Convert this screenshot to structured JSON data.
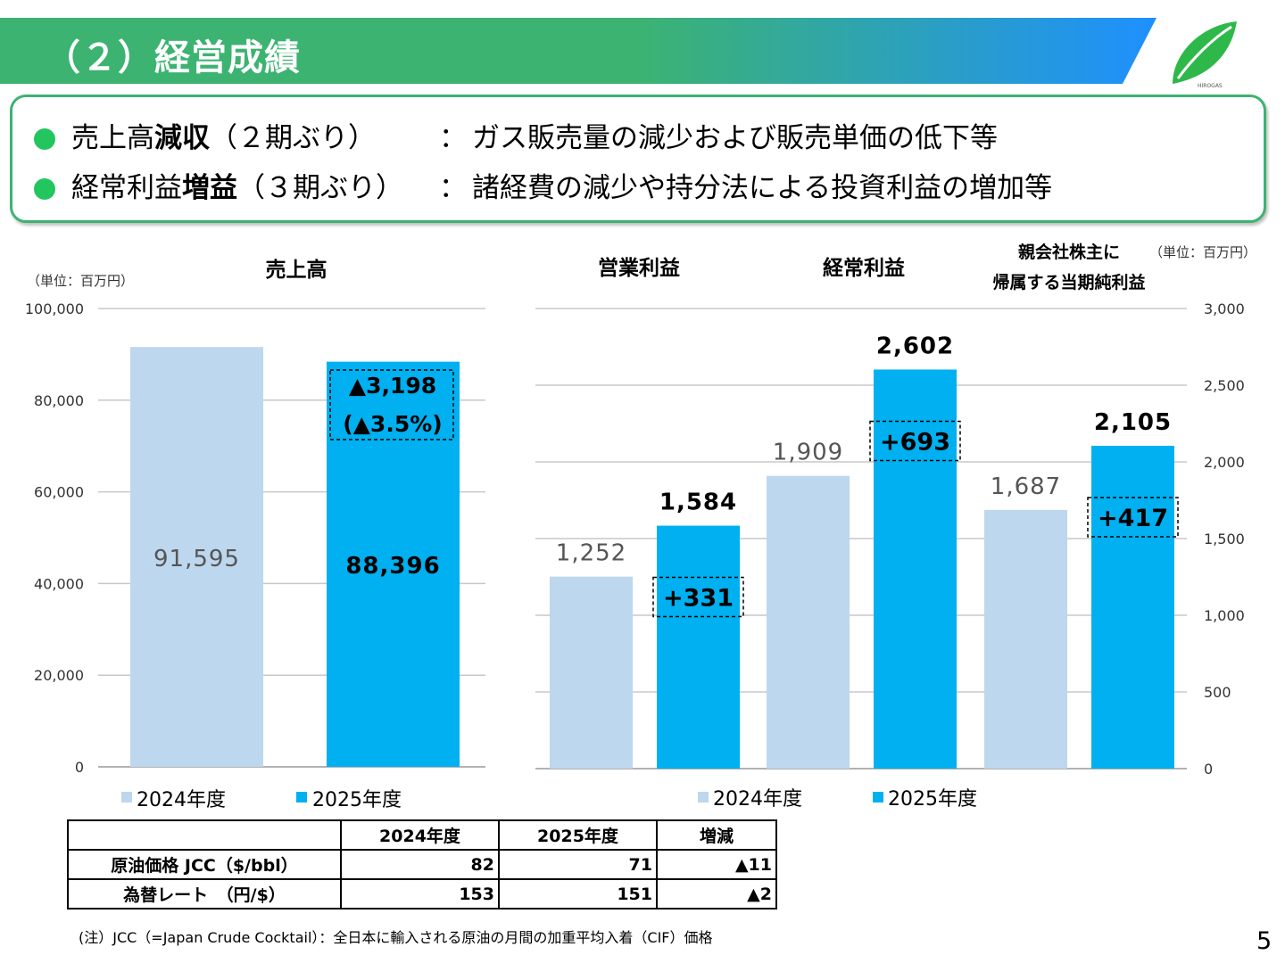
{
  "header": {
    "title": "（２）経営成績",
    "logo_text": "HIROGAS"
  },
  "summary": [
    {
      "prefix": "売上高",
      "bold": "減収",
      "paren": "（２期ぶり）",
      "colon": "：",
      "desc": "ガス販売量の減少および販売単価の低下等"
    },
    {
      "prefix": "経常利益",
      "bold": "増益",
      "paren": "（３期ぶり）",
      "colon": "：",
      "desc": "諸経費の減少や持分法による投資利益の増加等"
    }
  ],
  "colors": {
    "y2024": "#bdd7ee",
    "y2025": "#00b0f0",
    "header_green": "#3cb371",
    "header_blue": "#1e90ff"
  },
  "chart_data": [
    {
      "type": "bar",
      "title": "売上高",
      "unit_label": "（単位：百万円）",
      "categories": [
        "売上高"
      ],
      "series": [
        {
          "name": "2024年度",
          "values": [
            91595
          ],
          "labels": [
            "91,595"
          ]
        },
        {
          "name": "2025年度",
          "values": [
            88396
          ],
          "labels": [
            "88,396"
          ]
        }
      ],
      "annotation": {
        "line1": "▲3,198",
        "line2": "(▲3.5%)"
      },
      "ylim": [
        0,
        100000
      ],
      "yticks": [
        0,
        20000,
        40000,
        60000,
        80000,
        100000
      ],
      "ytick_labels": [
        "0",
        "20,000",
        "40,000",
        "60,000",
        "80,000",
        "100,000"
      ],
      "legend": [
        "2024年度",
        "2025年度"
      ]
    },
    {
      "type": "bar",
      "categories": [
        "営業利益",
        "経常利益",
        "親会社株主に帰属する当期純利益"
      ],
      "category_labels": [
        [
          "営業利益"
        ],
        [
          "経常利益"
        ],
        [
          "親会社株主に",
          "帰属する当期純利益"
        ]
      ],
      "unit_label": "（単位：百万円）",
      "series": [
        {
          "name": "2024年度",
          "values": [
            1252,
            1909,
            1687
          ],
          "labels": [
            "1,252",
            "1,909",
            "1,687"
          ]
        },
        {
          "name": "2025年度",
          "values": [
            1584,
            2602,
            2105
          ],
          "labels": [
            "1,584",
            "2,602",
            "2,105"
          ]
        }
      ],
      "diffs": [
        "+331",
        "+693",
        "+417"
      ],
      "ylim": [
        0,
        3000
      ],
      "yticks": [
        0,
        500,
        1000,
        1500,
        2000,
        2500,
        3000
      ],
      "ytick_labels": [
        "0",
        "500",
        "1,000",
        "1,500",
        "2,000",
        "2,500",
        "3,000"
      ],
      "legend": [
        "2024年度",
        "2025年度"
      ]
    }
  ],
  "table": {
    "headers": [
      "",
      "2024年度",
      "2025年度",
      "増減"
    ],
    "rows": [
      [
        "原油価格 JCC（$/bbl）",
        "82",
        "71",
        "▲11"
      ],
      [
        "為替レート　（円/$）",
        "153",
        "151",
        "▲2"
      ]
    ]
  },
  "note": "(注）JCC（=Japan Crude Cocktail）：全日本に輸入される原油の月間の加重平均入着（CIF）価格",
  "page_number": "5"
}
